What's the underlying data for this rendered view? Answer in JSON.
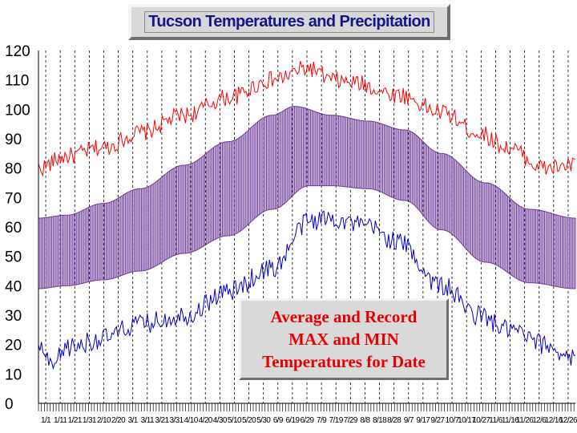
{
  "title": "Tucson Temperatures and Precipitation",
  "annotation": {
    "lines": [
      "Average and Record",
      "MAX and MIN",
      "Temperatures for Date"
    ]
  },
  "colors": {
    "record_max": "#ff0000",
    "record_min": "#0000cc",
    "average_band": "#6e3a9a",
    "title_text": "#14148c",
    "annotation_text": "#e60000",
    "grid": "#000000"
  },
  "chart_data": {
    "type": "line",
    "title": "Tucson Temperatures and Precipitation",
    "xlabel": "",
    "ylabel": "",
    "ylim": [
      0,
      120
    ],
    "yticks": [
      0,
      10,
      20,
      30,
      40,
      50,
      60,
      70,
      80,
      90,
      100,
      110,
      120
    ],
    "grid": "vertical dashed",
    "xtick_labels": [
      "1/1",
      "1/11",
      "1/21",
      "1/31",
      "2/10",
      "2/20",
      "3/1",
      "3/11",
      "3/21",
      "3/31",
      "4/10",
      "4/20",
      "4/30",
      "5/10",
      "5/20",
      "5/30",
      "6/9",
      "6/19",
      "6/29",
      "7/9",
      "7/19",
      "7/29",
      "8/8",
      "8/18",
      "8/28",
      "9/7",
      "9/17",
      "9/27",
      "10/7",
      "10/17",
      "10/27",
      "11/6",
      "11/16",
      "11/26",
      "12/6",
      "12/16",
      "12/26"
    ],
    "x_day_range": [
      1,
      366
    ],
    "series": [
      {
        "kind": "record_max",
        "knot_days": [
          1,
          20,
          45,
          70,
          100,
          130,
          160,
          185,
          200,
          215,
          245,
          275,
          300,
          320,
          345,
          366
        ],
        "knot_values": [
          80,
          84,
          87,
          92,
          98,
          104,
          110,
          114,
          110,
          109,
          105,
          99,
          92,
          87,
          80,
          81
        ],
        "noise": 3
      },
      {
        "kind": "average_max",
        "knot_days": [
          1,
          20,
          45,
          70,
          100,
          130,
          160,
          175,
          200,
          225,
          250,
          275,
          305,
          335,
          366
        ],
        "knot_values": [
          63,
          64,
          68,
          73,
          81,
          89,
          98,
          101,
          98,
          96,
          93,
          85,
          75,
          66,
          63
        ],
        "noise": 0
      },
      {
        "kind": "average_min",
        "knot_days": [
          1,
          20,
          45,
          70,
          100,
          130,
          160,
          185,
          200,
          225,
          250,
          275,
          305,
          335,
          366
        ],
        "knot_values": [
          39,
          40,
          42,
          45,
          51,
          57,
          66,
          74,
          74,
          73,
          69,
          59,
          48,
          41,
          39
        ],
        "noise": 0
      },
      {
        "kind": "record_min",
        "knot_days": [
          1,
          10,
          20,
          45,
          70,
          100,
          130,
          160,
          185,
          200,
          225,
          245,
          275,
          300,
          320,
          345,
          366
        ],
        "knot_values": [
          20,
          12,
          19,
          22,
          27,
          30,
          38,
          46,
          62,
          63,
          60,
          55,
          40,
          30,
          25,
          20,
          15
        ],
        "noise": 3.5
      }
    ]
  }
}
